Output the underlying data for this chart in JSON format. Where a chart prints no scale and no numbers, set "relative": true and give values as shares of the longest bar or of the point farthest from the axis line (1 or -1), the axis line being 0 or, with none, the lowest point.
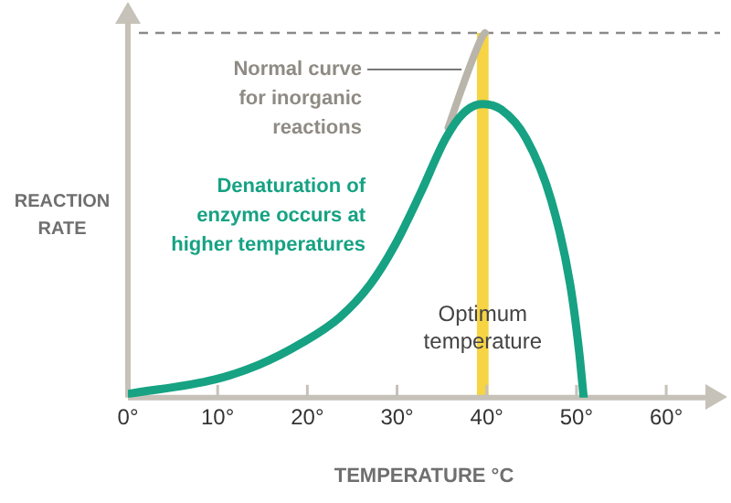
{
  "chart_data": {
    "type": "line",
    "relative": true,
    "xlabel": "TEMPERATURE °C",
    "ylabel": "REACTION RATE",
    "xlim": [
      0,
      66
    ],
    "xticks": [
      {
        "value": 0,
        "label": "0°"
      },
      {
        "value": 10,
        "label": "10°"
      },
      {
        "value": 20,
        "label": "20°"
      },
      {
        "value": 30,
        "label": "30°"
      },
      {
        "value": 40,
        "label": "40°"
      },
      {
        "value": 50,
        "label": "50°"
      },
      {
        "value": 60,
        "label": "60°"
      }
    ],
    "tick_labels": "x",
    "grid": false,
    "legend": false,
    "marker": "none",
    "line_style": "solid",
    "series": [
      {
        "name": "Denaturation of enzyme occurs at higher temperatures",
        "color": "#16a283",
        "x": [
          0,
          9.7,
          14.6,
          19.4,
          23.6,
          27,
          29.8,
          32.6,
          35.4,
          37.4,
          39.5,
          41.6,
          44.4,
          47.2,
          49.3,
          50.3,
          50.8
        ],
        "values": [
          0.01,
          0.05,
          0.09,
          0.15,
          0.22,
          0.31,
          0.42,
          0.56,
          0.71,
          0.78,
          0.805,
          0.79,
          0.71,
          0.54,
          0.31,
          0.125,
          0
        ]
      },
      {
        "name": "Normal curve for inorganic reactions",
        "color": "#b9b5aa",
        "x": [
          35.7,
          37.4,
          39.5,
          39.8
        ],
        "values": [
          0.74,
          0.86,
          0.99,
          1
        ]
      }
    ],
    "bands": [
      {
        "axis": "x",
        "from": 38.9,
        "to": 40.2,
        "label": "Optimum temperature",
        "color": "#f6d443"
      }
    ],
    "ref_lines": [
      {
        "axis": "y",
        "value": 1,
        "color": "#8a8a8a",
        "line_style": "dashed"
      }
    ]
  }
}
